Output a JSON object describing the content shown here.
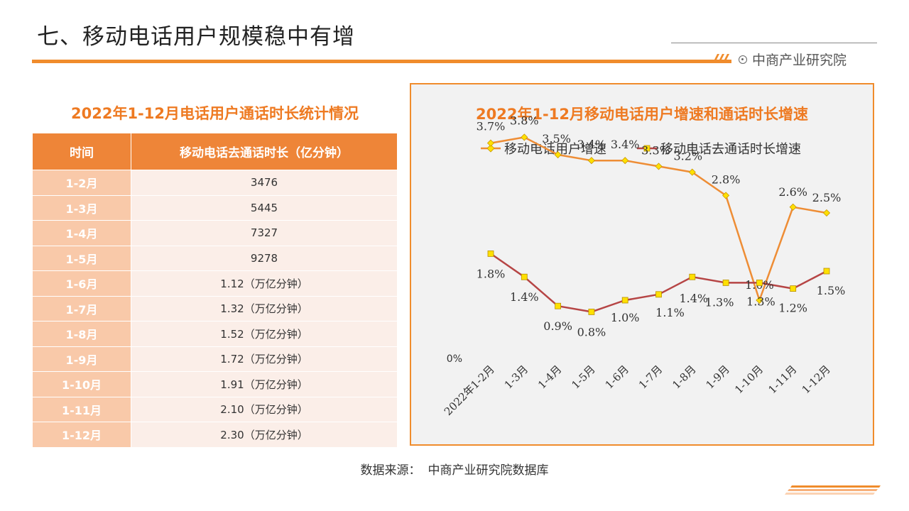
{
  "page": {
    "title": "七、移动电话用户规模稳中有增",
    "brand": "中商产业研究院",
    "source_label": "数据来源：",
    "source_value": "中商产业研究院数据库"
  },
  "table": {
    "title": "2022年1-12月电话用户通话时长统计情况",
    "headers": [
      "时间",
      "移动电话去通话时长（亿分钟）"
    ],
    "rows": [
      {
        "month": "1-2月",
        "value": "3476"
      },
      {
        "month": "1-3月",
        "value": "5445"
      },
      {
        "month": "1-4月",
        "value": "7327"
      },
      {
        "month": "1-5月",
        "value": "9278"
      },
      {
        "month": "1-6月",
        "value": "1.12（万亿分钟）"
      },
      {
        "month": "1-7月",
        "value": "1.32（万亿分钟）"
      },
      {
        "month": "1-8月",
        "value": "1.52（万亿分钟）"
      },
      {
        "month": "1-9月",
        "value": "1.72（万亿分钟）"
      },
      {
        "month": "1-10月",
        "value": "1.91（万亿分钟）"
      },
      {
        "month": "1-11月",
        "value": "2.10（万亿分钟）"
      },
      {
        "month": "1-12月",
        "value": "2.30（万亿分钟）"
      }
    ]
  },
  "chart_data": {
    "type": "line",
    "title": "2022年1-12月移动电话用户增速和通话时长增速",
    "categories": [
      "2022年1-2月",
      "1-3月",
      "1-4月",
      "1-5月",
      "1-6月",
      "1-7月",
      "1-8月",
      "1-9月",
      "1-10月",
      "1-11月",
      "1-12月"
    ],
    "series": [
      {
        "name": "移动电话用户增速",
        "color": "#ee8d35",
        "marker_fill": "#ffe000",
        "marker": "diamond",
        "values": [
          3.7,
          3.8,
          3.5,
          3.4,
          3.4,
          3.3,
          3.2,
          2.8,
          1.0,
          2.6,
          2.5
        ],
        "labels": [
          "3.7%",
          "3.8%",
          "3.5%",
          "3.4%",
          "3.4%",
          "3.3%",
          "3.2%",
          "2.8%",
          "1.0%",
          "2.6%",
          "2.5%"
        ]
      },
      {
        "name": "移动电话去通话时长增速",
        "color": "#b64545",
        "marker_fill": "#ffe000",
        "marker": "square",
        "values": [
          1.8,
          1.4,
          0.9,
          0.8,
          1.0,
          1.1,
          1.4,
          1.3,
          1.3,
          1.2,
          1.5
        ],
        "labels": [
          "1.8%",
          "1.4%",
          "0.9%",
          "0.8%",
          "1.0%",
          "1.1%",
          "1.4%",
          "1.3%",
          "1.3%",
          "1.2%",
          "1.5%"
        ]
      }
    ],
    "ytick_label": "0%",
    "ylim": [
      0,
      4.0
    ],
    "legend": "top",
    "grid": false
  }
}
